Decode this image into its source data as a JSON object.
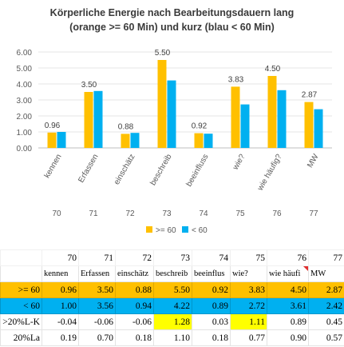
{
  "chart_data": {
    "type": "bar",
    "title_lines": [
      "Körperliche Energie nach Bearbeitungsdauern lang",
      "(orange >= 60 Min) und kurz (blau < 60 Min)"
    ],
    "categories": [
      "kennen",
      "Erfassen",
      "einschätz",
      "beschreib",
      "beeinfluss",
      "wie?",
      "wie häufig?",
      "MW"
    ],
    "sub_labels": [
      "70",
      "71",
      "72",
      "73",
      "74",
      "75",
      "76",
      "77"
    ],
    "series": [
      {
        "name": ">= 60",
        "color": "#ffc000",
        "values": [
          0.96,
          3.5,
          0.88,
          5.5,
          0.92,
          3.83,
          4.5,
          2.87
        ]
      },
      {
        "name": "< 60",
        "color": "#00b0f0",
        "values": [
          1.0,
          3.56,
          0.94,
          4.22,
          0.89,
          2.72,
          3.61,
          2.42
        ]
      }
    ],
    "data_labels": [
      "0.96",
      "3.50",
      "0.88",
      "5.50",
      "0.92",
      "3.83",
      "4.50",
      "2.87"
    ],
    "ylim": [
      0,
      6
    ],
    "yticks": [
      "0.00",
      "1.00",
      "2.00",
      "3.00",
      "4.00",
      "5.00",
      "6.00"
    ],
    "grid": true,
    "legend_position": "bottom"
  },
  "sheet": {
    "col_numbers": [
      "70",
      "71",
      "72",
      "73",
      "74",
      "75",
      "76",
      "77"
    ],
    "headers": [
      "kennen",
      "Erfassen",
      "einschätz",
      "beschreib",
      "beeinflus",
      "wie?",
      "wie häufi",
      "MW"
    ],
    "rows": [
      {
        "label": ">= 60",
        "values": [
          "0.96",
          "3.50",
          "0.88",
          "5.50",
          "0.92",
          "3.83",
          "4.50",
          "2.87"
        ],
        "style": "orange",
        "highlight": []
      },
      {
        "label": "< 60",
        "values": [
          "1.00",
          "3.56",
          "0.94",
          "4.22",
          "0.89",
          "2.72",
          "3.61",
          "2.42"
        ],
        "style": "blue",
        "highlight": []
      },
      {
        "label": ">20%L-K",
        "values": [
          "-0.04",
          "-0.06",
          "-0.06",
          "1.28",
          "0.03",
          "1.11",
          "0.89",
          "0.45"
        ],
        "style": "",
        "highlight": [
          3,
          5
        ]
      },
      {
        "label": "20%La",
        "values": [
          "0.19",
          "0.70",
          "0.18",
          "1.10",
          "0.18",
          "0.77",
          "0.90",
          "0.57"
        ],
        "style": "",
        "highlight": []
      }
    ],
    "highlight_color": "#ffff00",
    "orange_color": "#ffc000",
    "blue_color": "#00b0f0"
  }
}
